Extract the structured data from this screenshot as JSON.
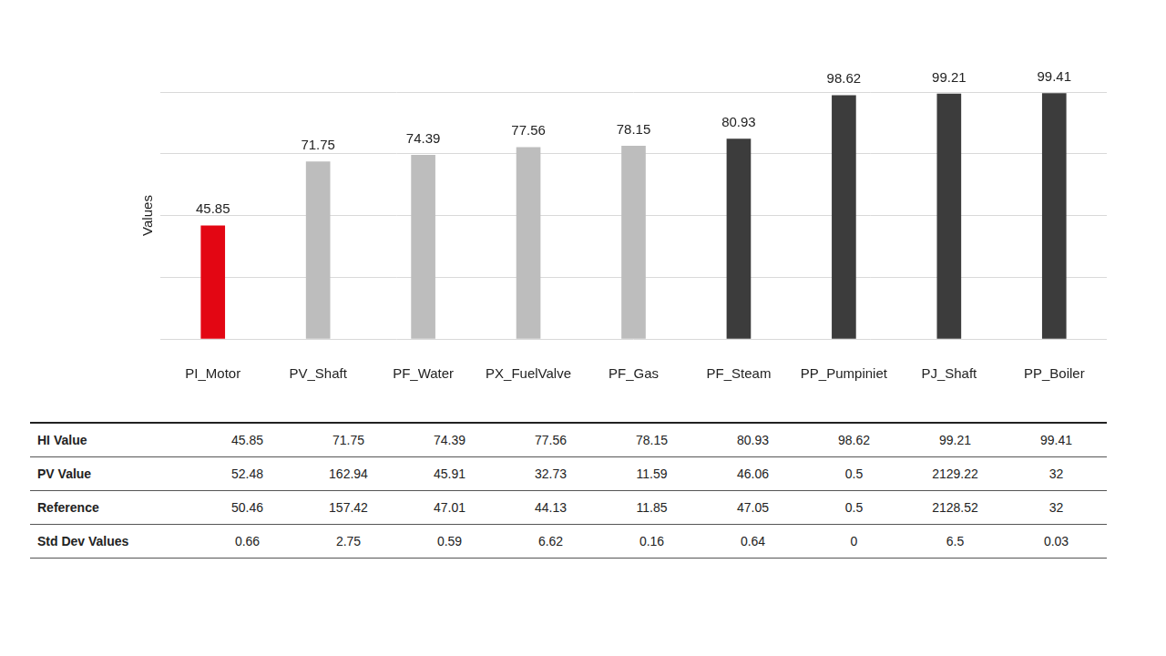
{
  "chart_data": {
    "type": "bar",
    "categories": [
      "PI_Motor",
      "PV_Shaft",
      "PF_Water",
      "PX_FuelValve",
      "PF_Gas",
      "PF_Steam",
      "PP_Pumpiniet",
      "PJ_Shaft",
      "PP_Boiler"
    ],
    "values": [
      45.85,
      71.75,
      74.39,
      77.56,
      78.15,
      80.93,
      98.62,
      99.21,
      99.41
    ],
    "colors": [
      "#e30613",
      "#bdbdbd",
      "#bdbdbd",
      "#bdbdbd",
      "#bdbdbd",
      "#3c3c3c",
      "#3c3c3c",
      "#3c3c3c",
      "#3c3c3c"
    ],
    "ylabel": "Values",
    "ylim": [
      0,
      100
    ],
    "yticks": [
      0,
      25,
      50,
      75,
      100
    ],
    "grid": true,
    "data_labels": true,
    "tick_labels": "x"
  },
  "table": {
    "rows": [
      {
        "label": "HI Value",
        "values": [
          45.85,
          71.75,
          74.39,
          77.56,
          78.15,
          80.93,
          98.62,
          99.21,
          99.41
        ]
      },
      {
        "label": "PV Value",
        "values": [
          52.48,
          162.94,
          45.91,
          32.73,
          11.59,
          46.06,
          0.5,
          2129.22,
          32
        ]
      },
      {
        "label": "Reference",
        "values": [
          50.46,
          157.42,
          47.01,
          44.13,
          11.85,
          47.05,
          0.5,
          2128.52,
          32
        ]
      },
      {
        "label": "Std Dev Values",
        "values": [
          0.66,
          2.75,
          0.59,
          6.62,
          0.16,
          0.64,
          0,
          6.5,
          0.03
        ]
      }
    ]
  }
}
